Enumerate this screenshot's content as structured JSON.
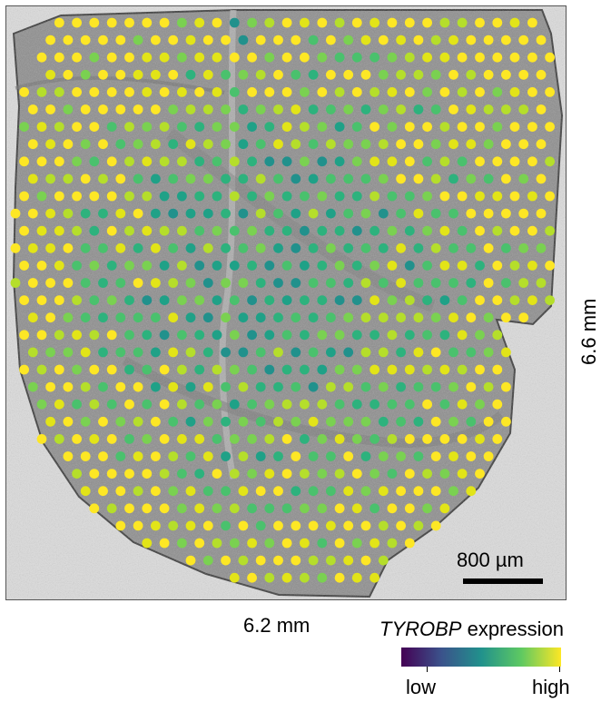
{
  "image": {
    "description_type": "spatial transcriptomics tissue section with expression spots",
    "scale_bar_label": "800 µm",
    "width_label": "6.2 mm",
    "height_label": "6.6 mm"
  },
  "legend": {
    "gene": "TYROBP",
    "suffix": " expression",
    "low_label": "low",
    "high_label": "high",
    "colormap": [
      "#440154",
      "#3b528b",
      "#21918c",
      "#5ec962",
      "#fde725"
    ]
  },
  "colors": {
    "background": "#ffffff",
    "tissue": "#8f8f8f",
    "slide": "#d9d9d9",
    "spot_high": "#fde725",
    "spot_mid": "#5ec962",
    "spot_low": "#21918c"
  }
}
